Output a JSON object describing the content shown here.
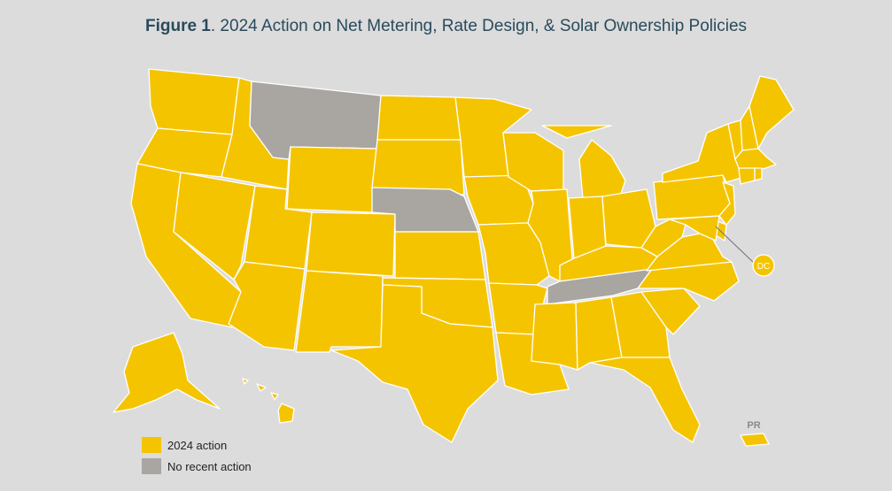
{
  "title": {
    "bold": "Figure 1",
    "rest": ". 2024 Action on Net Metering, Rate Design, & Solar Ownership Policies"
  },
  "colors": {
    "action_2024": "#f5c400",
    "no_recent_action": "#a9a6a2",
    "background": "#dcdcdc"
  },
  "legend": [
    {
      "label": "2024 action",
      "color": "#f5c400"
    },
    {
      "label": "No recent action",
      "color": "#a9a6a2"
    }
  ],
  "labels": {
    "dc": "DC",
    "pr": "PR"
  },
  "states": {
    "action_2024": [
      "WA",
      "OR",
      "CA",
      "ID",
      "NV",
      "UT",
      "AZ",
      "WY",
      "CO",
      "NM",
      "ND",
      "SD",
      "KS",
      "OK",
      "TX",
      "MN",
      "IA",
      "MO",
      "AR",
      "LA",
      "WI",
      "IL",
      "MI",
      "IN",
      "OH",
      "KY",
      "MS",
      "AL",
      "GA",
      "FL",
      "SC",
      "NC",
      "VA",
      "WV",
      "PA",
      "NY",
      "VT",
      "NH",
      "ME",
      "MA",
      "CT",
      "RI",
      "NJ",
      "DE",
      "MD",
      "DC",
      "AK",
      "HI",
      "PR"
    ],
    "no_recent_action": [
      "MT",
      "NE",
      "TN"
    ]
  }
}
